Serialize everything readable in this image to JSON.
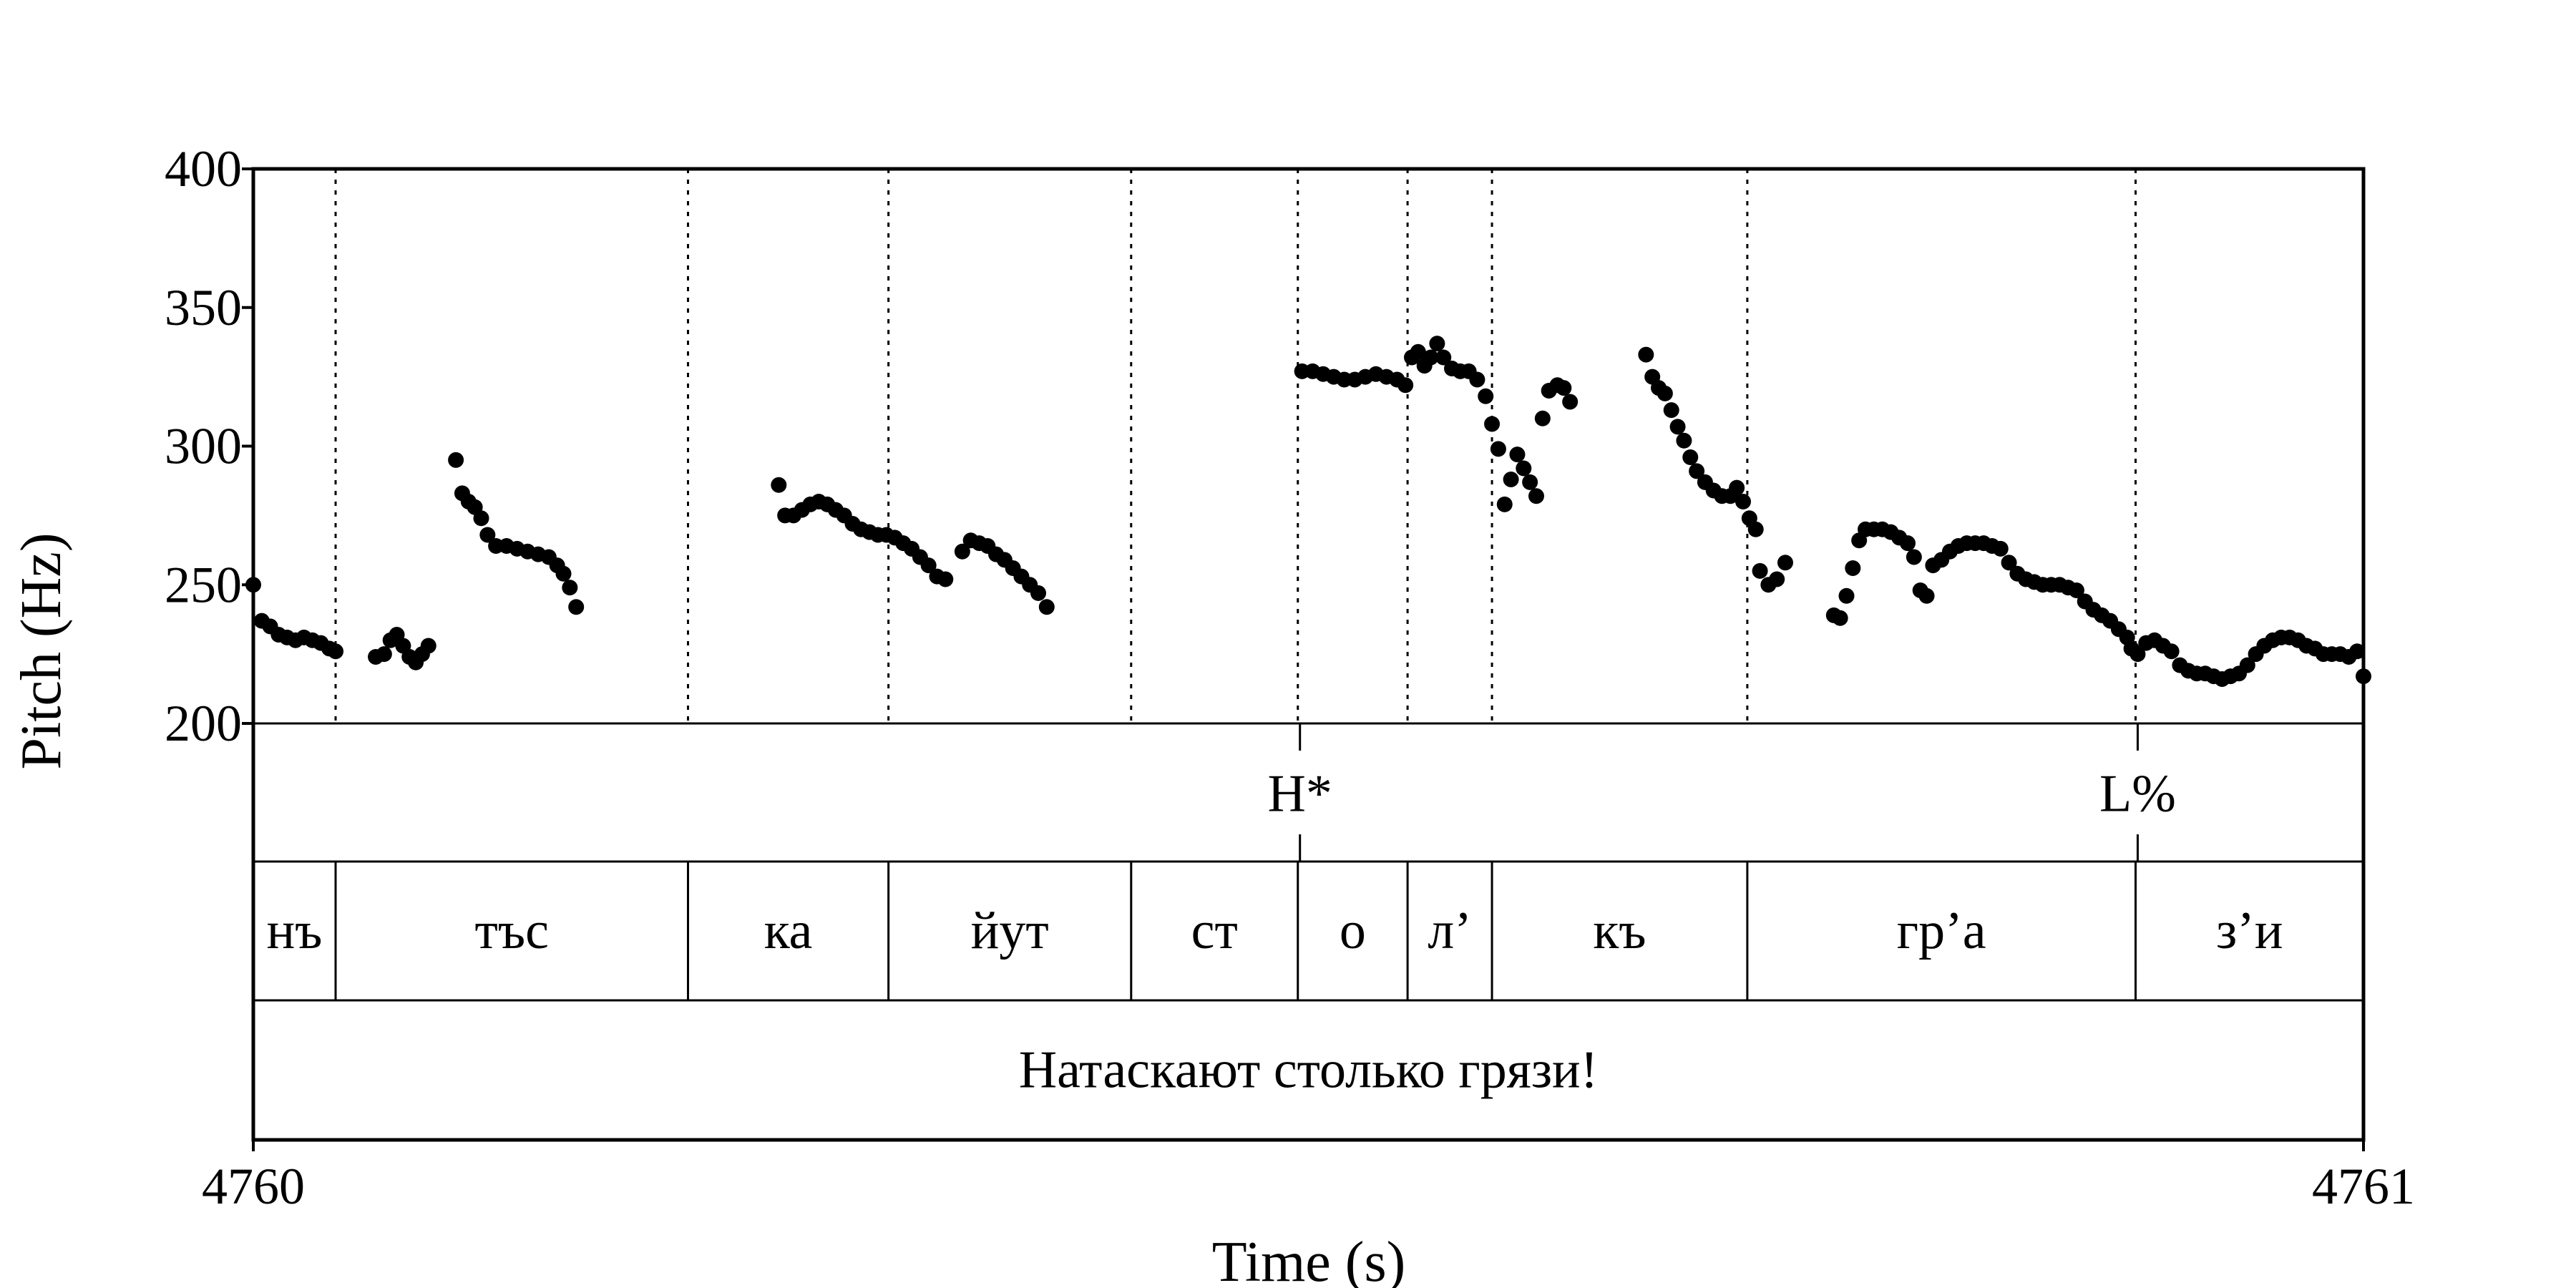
{
  "chart_data": {
    "type": "scatter",
    "xlabel": "Time (s)",
    "ylabel": "Pitch (Hz)",
    "xlim": [
      4760,
      4761
    ],
    "ylim": [
      200,
      400
    ],
    "x_ticks": [
      "4760",
      "4761"
    ],
    "y_ticks": [
      "200",
      "250",
      "300",
      "350",
      "400"
    ],
    "marker_color": "#000000",
    "tone_tier": [
      {
        "label": "H*",
        "time": 4760.496
      },
      {
        "label": "L%",
        "time": 4760.893
      }
    ],
    "syllable_tier": {
      "boundaries": [
        4760.039,
        4760.206,
        4760.301,
        4760.416,
        4760.495,
        4760.547,
        4760.587,
        4760.708,
        4760.892
      ],
      "labels": [
        "нъ",
        "тъс",
        "ка",
        "йут",
        "ст",
        "о",
        "л’",
        "къ",
        "гр’а",
        "з’и"
      ]
    },
    "sentence_tier": {
      "label": "Натаскают столько грязи!"
    },
    "series": [
      {
        "points": [
          [
            4760.0,
            250
          ],
          [
            4760.004,
            237
          ],
          [
            4760.008,
            235
          ],
          [
            4760.012,
            232
          ],
          [
            4760.016,
            231
          ],
          [
            4760.02,
            230
          ],
          [
            4760.024,
            231
          ],
          [
            4760.028,
            230
          ],
          [
            4760.032,
            229
          ],
          [
            4760.036,
            227
          ],
          [
            4760.039,
            226
          ],
          [
            4760.058,
            224
          ],
          [
            4760.062,
            225
          ],
          [
            4760.065,
            230
          ],
          [
            4760.068,
            232
          ],
          [
            4760.071,
            228
          ],
          [
            4760.074,
            224
          ],
          [
            4760.077,
            222
          ],
          [
            4760.08,
            225
          ],
          [
            4760.083,
            228
          ],
          [
            4760.096,
            295
          ],
          [
            4760.099,
            283
          ],
          [
            4760.102,
            280
          ],
          [
            4760.105,
            278
          ],
          [
            4760.108,
            274
          ],
          [
            4760.111,
            268
          ],
          [
            4760.115,
            264
          ],
          [
            4760.12,
            264
          ],
          [
            4760.125,
            263
          ],
          [
            4760.13,
            262
          ],
          [
            4760.135,
            261
          ],
          [
            4760.14,
            260
          ],
          [
            4760.144,
            257
          ],
          [
            4760.147,
            254
          ],
          [
            4760.15,
            249
          ],
          [
            4760.153,
            242
          ],
          [
            4760.249,
            286
          ],
          [
            4760.252,
            275
          ],
          [
            4760.256,
            275
          ],
          [
            4760.26,
            277
          ],
          [
            4760.264,
            279
          ],
          [
            4760.268,
            280
          ],
          [
            4760.272,
            279
          ],
          [
            4760.276,
            277
          ],
          [
            4760.28,
            275
          ],
          [
            4760.284,
            272
          ],
          [
            4760.288,
            270
          ],
          [
            4760.292,
            269
          ],
          [
            4760.296,
            268
          ],
          [
            4760.3,
            268
          ],
          [
            4760.304,
            267
          ],
          [
            4760.308,
            265
          ],
          [
            4760.312,
            263
          ],
          [
            4760.316,
            260
          ],
          [
            4760.32,
            257
          ],
          [
            4760.324,
            253
          ],
          [
            4760.328,
            252
          ],
          [
            4760.336,
            262
          ],
          [
            4760.34,
            266
          ],
          [
            4760.344,
            265
          ],
          [
            4760.348,
            264
          ],
          [
            4760.352,
            261
          ],
          [
            4760.356,
            259
          ],
          [
            4760.36,
            256
          ],
          [
            4760.364,
            253
          ],
          [
            4760.368,
            250
          ],
          [
            4760.372,
            247
          ],
          [
            4760.376,
            242
          ],
          [
            4760.497,
            327
          ],
          [
            4760.502,
            327
          ],
          [
            4760.507,
            326
          ],
          [
            4760.512,
            325
          ],
          [
            4760.517,
            324
          ],
          [
            4760.522,
            324
          ],
          [
            4760.527,
            325
          ],
          [
            4760.532,
            326
          ],
          [
            4760.537,
            325
          ],
          [
            4760.542,
            324
          ],
          [
            4760.546,
            322
          ],
          [
            4760.549,
            332
          ],
          [
            4760.552,
            334
          ],
          [
            4760.555,
            329
          ],
          [
            4760.558,
            332
          ],
          [
            4760.561,
            337
          ],
          [
            4760.564,
            332
          ],
          [
            4760.568,
            328
          ],
          [
            4760.572,
            327
          ],
          [
            4760.576,
            327
          ],
          [
            4760.58,
            324
          ],
          [
            4760.584,
            318
          ],
          [
            4760.587,
            308
          ],
          [
            4760.59,
            299
          ],
          [
            4760.593,
            279
          ],
          [
            4760.596,
            288
          ],
          [
            4760.599,
            297
          ],
          [
            4760.602,
            292
          ],
          [
            4760.605,
            287
          ],
          [
            4760.608,
            282
          ],
          [
            4760.611,
            310
          ],
          [
            4760.614,
            320
          ],
          [
            4760.618,
            322
          ],
          [
            4760.621,
            321
          ],
          [
            4760.624,
            316
          ],
          [
            4760.66,
            333
          ],
          [
            4760.663,
            325
          ],
          [
            4760.666,
            321
          ],
          [
            4760.669,
            319
          ],
          [
            4760.672,
            313
          ],
          [
            4760.675,
            307
          ],
          [
            4760.678,
            302
          ],
          [
            4760.681,
            296
          ],
          [
            4760.684,
            291
          ],
          [
            4760.688,
            287
          ],
          [
            4760.692,
            284
          ],
          [
            4760.696,
            282
          ],
          [
            4760.7,
            282
          ],
          [
            4760.703,
            285
          ],
          [
            4760.706,
            280
          ],
          [
            4760.709,
            274
          ],
          [
            4760.712,
            270
          ],
          [
            4760.714,
            255
          ],
          [
            4760.718,
            250
          ],
          [
            4760.722,
            252
          ],
          [
            4760.726,
            258
          ],
          [
            4760.749,
            239
          ],
          [
            4760.752,
            238
          ],
          [
            4760.755,
            246
          ],
          [
            4760.758,
            256
          ],
          [
            4760.761,
            266
          ],
          [
            4760.764,
            270
          ],
          [
            4760.768,
            270
          ],
          [
            4760.772,
            270
          ],
          [
            4760.776,
            269
          ],
          [
            4760.78,
            267
          ],
          [
            4760.784,
            265
          ],
          [
            4760.787,
            260
          ],
          [
            4760.79,
            248
          ],
          [
            4760.793,
            246
          ],
          [
            4760.796,
            257
          ],
          [
            4760.8,
            259
          ],
          [
            4760.804,
            262
          ],
          [
            4760.808,
            264
          ],
          [
            4760.812,
            265
          ],
          [
            4760.816,
            265
          ],
          [
            4760.82,
            265
          ],
          [
            4760.824,
            264
          ],
          [
            4760.828,
            263
          ],
          [
            4760.832,
            258
          ],
          [
            4760.836,
            254
          ],
          [
            4760.84,
            252
          ],
          [
            4760.844,
            251
          ],
          [
            4760.848,
            250
          ],
          [
            4760.852,
            250
          ],
          [
            4760.856,
            250
          ],
          [
            4760.86,
            249
          ],
          [
            4760.864,
            248
          ],
          [
            4760.868,
            244
          ],
          [
            4760.872,
            241
          ],
          [
            4760.876,
            239
          ],
          [
            4760.88,
            237
          ],
          [
            4760.884,
            234
          ],
          [
            4760.888,
            231
          ],
          [
            4760.89,
            227
          ],
          [
            4760.893,
            225
          ],
          [
            4760.897,
            229
          ],
          [
            4760.901,
            230
          ],
          [
            4760.905,
            228
          ],
          [
            4760.909,
            226
          ],
          [
            4760.913,
            221
          ],
          [
            4760.917,
            219
          ],
          [
            4760.921,
            218
          ],
          [
            4760.925,
            218
          ],
          [
            4760.929,
            217
          ],
          [
            4760.933,
            216
          ],
          [
            4760.937,
            217
          ],
          [
            4760.941,
            218
          ],
          [
            4760.945,
            221
          ],
          [
            4760.949,
            225
          ],
          [
            4760.953,
            228
          ],
          [
            4760.957,
            230
          ],
          [
            4760.961,
            231
          ],
          [
            4760.965,
            231
          ],
          [
            4760.969,
            230
          ],
          [
            4760.973,
            228
          ],
          [
            4760.977,
            227
          ],
          [
            4760.981,
            225
          ],
          [
            4760.985,
            225
          ],
          [
            4760.989,
            225
          ],
          [
            4760.993,
            224
          ],
          [
            4760.997,
            226
          ],
          [
            4761.0,
            217
          ]
        ]
      }
    ]
  }
}
